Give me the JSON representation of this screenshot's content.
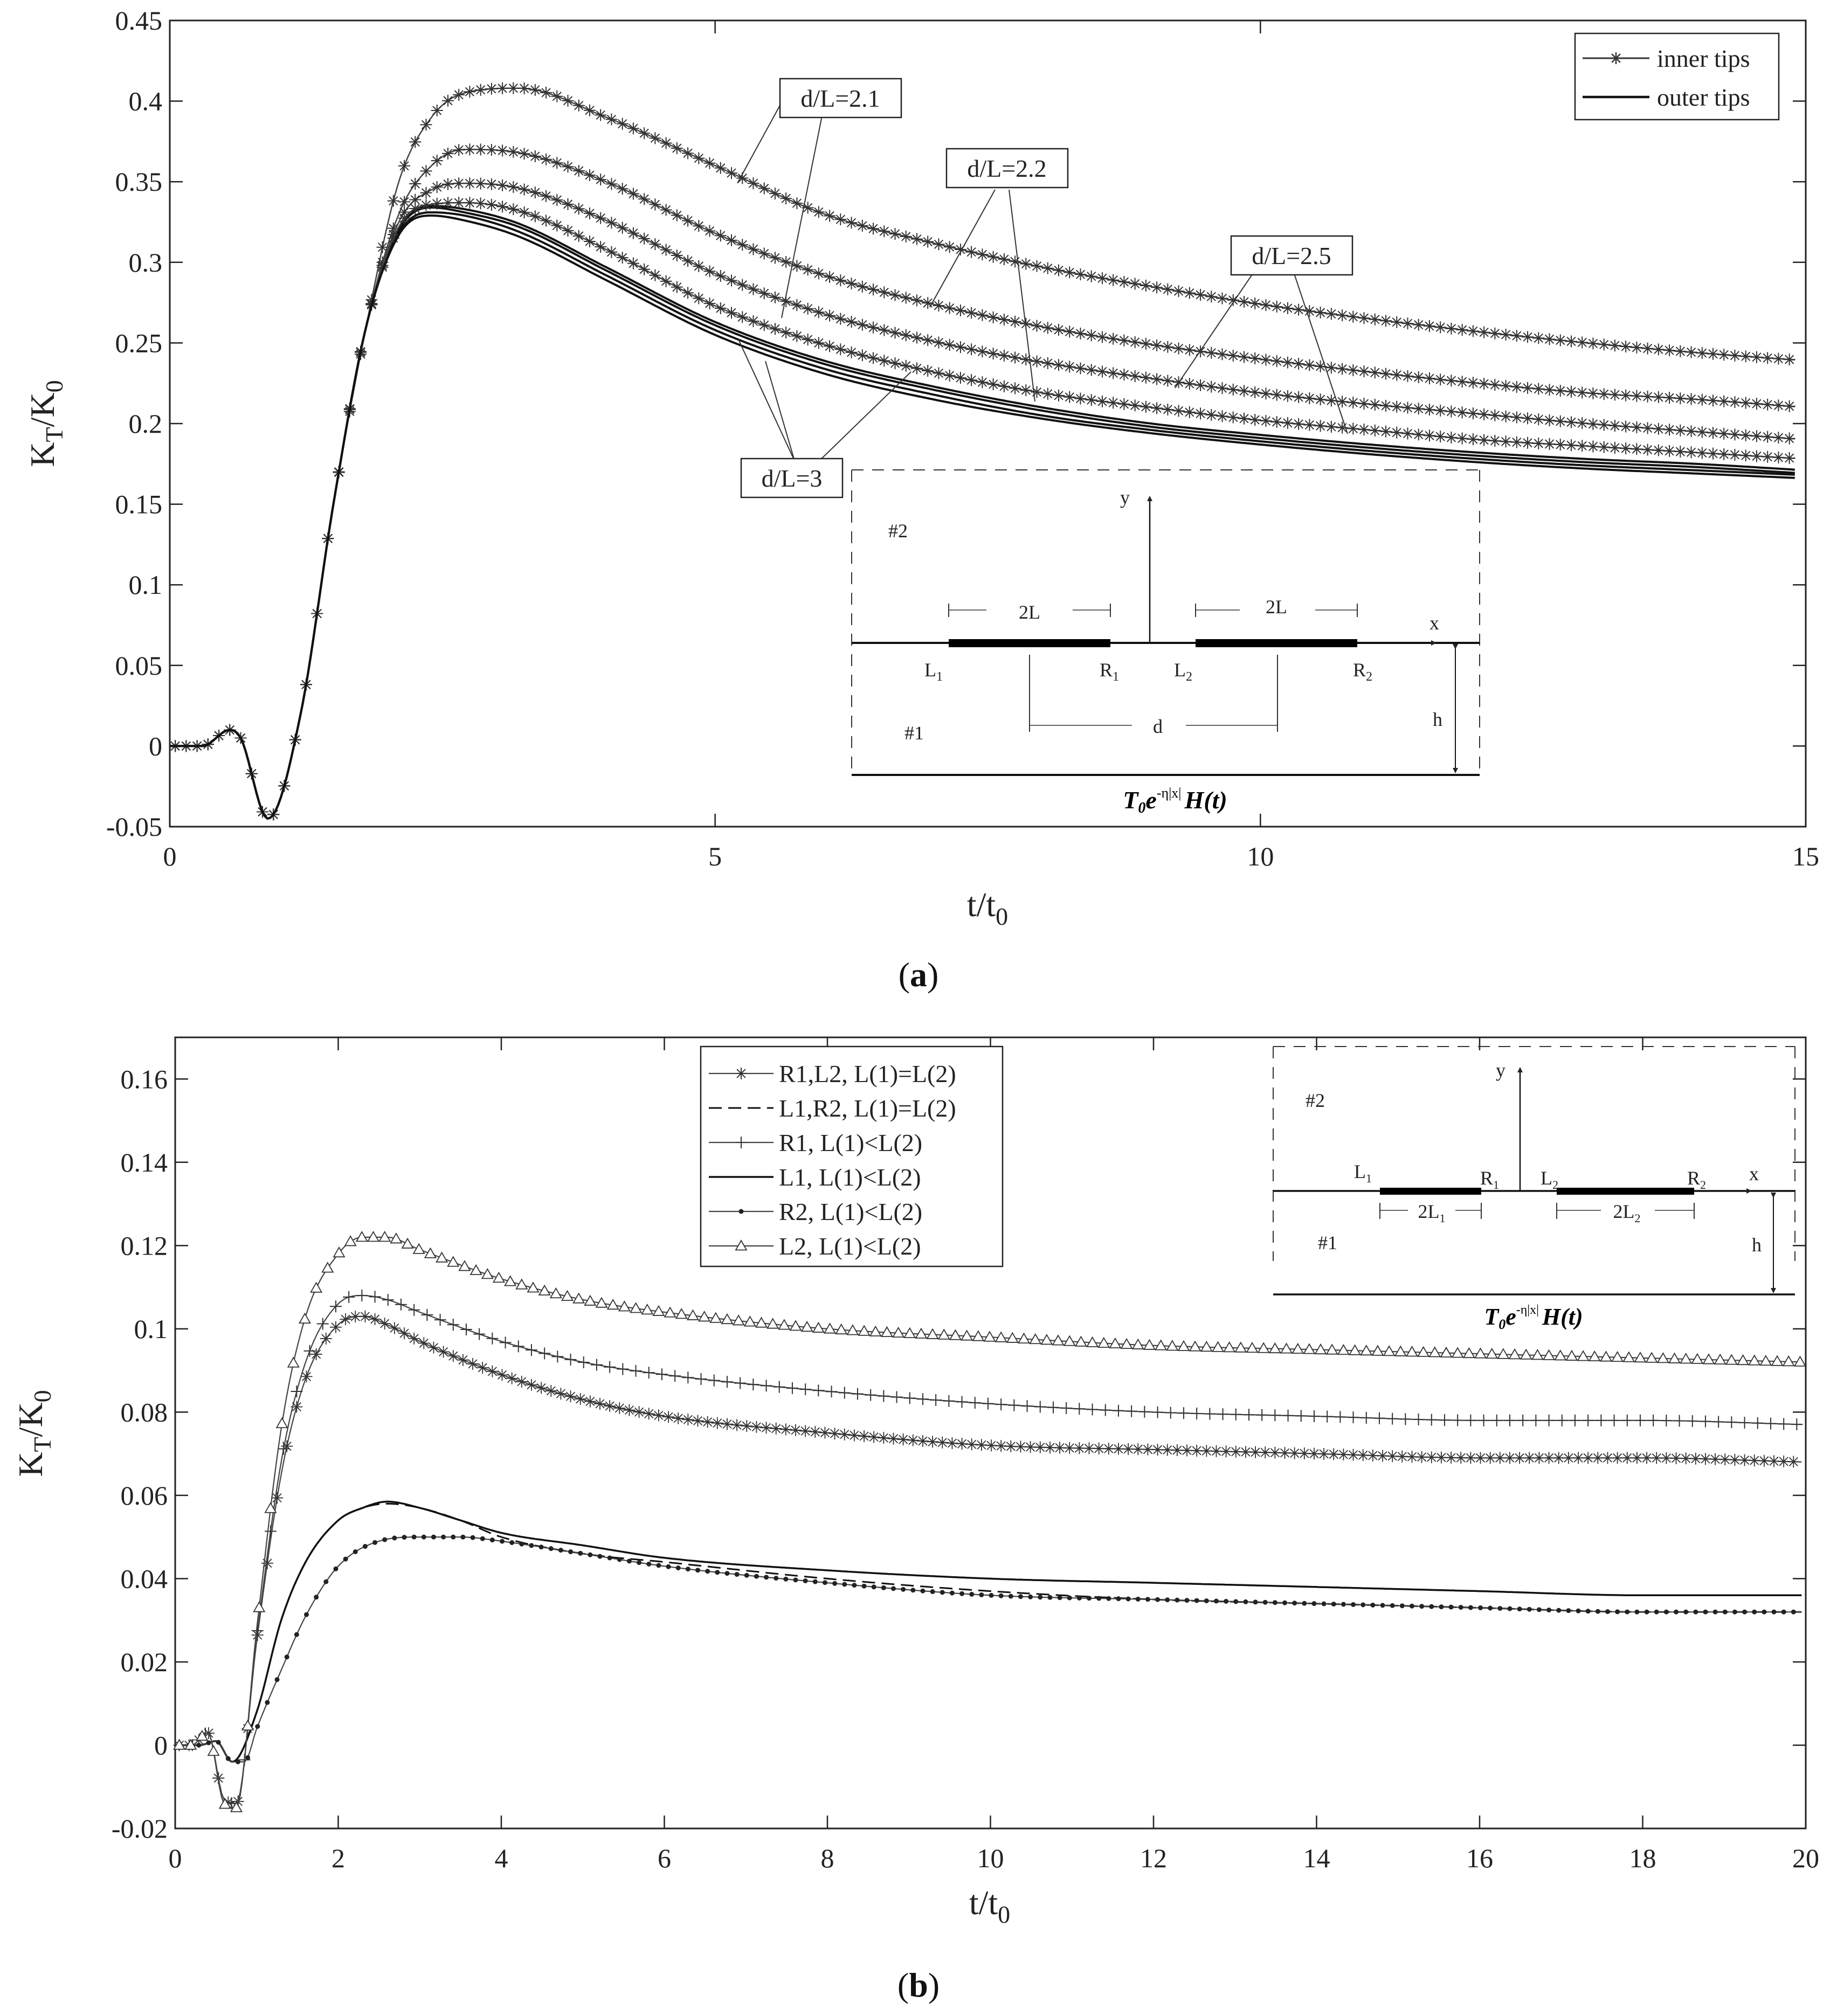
{
  "chart_data": [
    {
      "type": "line",
      "panel_label": "a",
      "xlabel": "t/t",
      "xlabel_sub": "0",
      "ylabel": "K",
      "ylabel_sub1": "T",
      "ylabel_mid": "/K",
      "ylabel_sub2": "0",
      "xlim": [
        0,
        15
      ],
      "ylim": [
        -0.05,
        0.45
      ],
      "xticks": [
        0,
        5,
        10,
        15
      ],
      "yticks": [
        -0.05,
        0,
        0.05,
        0.1,
        0.15,
        0.2,
        0.25,
        0.3,
        0.35,
        0.4,
        0.45
      ],
      "grid": false,
      "legend_position": "top-right",
      "legend": [
        {
          "label": "inner tips",
          "marker": "star",
          "line": "solid"
        },
        {
          "label": "outer tips",
          "marker": "none",
          "line": "solid"
        }
      ],
      "x": [
        0,
        0.3,
        0.55,
        0.65,
        0.9,
        1.2,
        1.5,
        1.8,
        2.1,
        2.4,
        2.7,
        3.2,
        4,
        5,
        6,
        7,
        8,
        9,
        10,
        11,
        12,
        13,
        14,
        15
      ],
      "series": [
        {
          "name": "inner tips, d/L=2.1",
          "style": "inner",
          "values": [
            0,
            0,
            0.01,
            0.005,
            -0.045,
            0.02,
            0.15,
            0.26,
            0.35,
            0.39,
            0.405,
            0.408,
            0.39,
            0.36,
            0.33,
            0.312,
            0.297,
            0.285,
            0.274,
            0.265,
            0.257,
            0.25,
            0.244,
            0.239
          ]
        },
        {
          "name": "outer tips, d/L=2.1",
          "style": "outer",
          "values": [
            0,
            0,
            0.01,
            0.005,
            -0.045,
            0.02,
            0.15,
            0.26,
            0.32,
            0.335,
            0.333,
            0.324,
            0.297,
            0.263,
            0.239,
            0.223,
            0.21,
            0.2,
            0.193,
            0.187,
            0.182,
            0.178,
            0.175,
            0.171
          ]
        },
        {
          "name": "inner tips, d/L=2.2",
          "style": "inner",
          "values": [
            0,
            0,
            0.01,
            0.005,
            -0.045,
            0.02,
            0.15,
            0.26,
            0.33,
            0.36,
            0.37,
            0.368,
            0.35,
            0.318,
            0.292,
            0.274,
            0.26,
            0.249,
            0.24,
            0.232,
            0.225,
            0.219,
            0.215,
            0.21
          ]
        },
        {
          "name": "outer tips, d/L=2.2",
          "style": "outer",
          "values": [
            0,
            0,
            0.01,
            0.005,
            -0.045,
            0.02,
            0.15,
            0.26,
            0.32,
            0.334,
            0.331,
            0.322,
            0.295,
            0.261,
            0.237,
            0.221,
            0.208,
            0.198,
            0.191,
            0.185,
            0.18,
            0.176,
            0.173,
            0.169
          ]
        },
        {
          "name": "inner tips, d/L=2.5",
          "style": "inner",
          "values": [
            0,
            0,
            0.01,
            0.005,
            -0.045,
            0.02,
            0.15,
            0.26,
            0.325,
            0.345,
            0.349,
            0.346,
            0.326,
            0.293,
            0.268,
            0.251,
            0.238,
            0.228,
            0.219,
            0.212,
            0.206,
            0.2,
            0.195,
            0.19
          ]
        },
        {
          "name": "outer tips, d/L=2.5",
          "style": "outer",
          "values": [
            0,
            0,
            0.01,
            0.005,
            -0.045,
            0.02,
            0.15,
            0.26,
            0.318,
            0.331,
            0.329,
            0.319,
            0.292,
            0.258,
            0.234,
            0.218,
            0.205,
            0.196,
            0.189,
            0.183,
            0.178,
            0.174,
            0.171,
            0.168
          ]
        },
        {
          "name": "inner tips, d/L=3",
          "style": "inner",
          "values": [
            0,
            0,
            0.01,
            0.005,
            -0.045,
            0.02,
            0.15,
            0.26,
            0.322,
            0.336,
            0.337,
            0.332,
            0.308,
            0.273,
            0.249,
            0.232,
            0.219,
            0.21,
            0.202,
            0.196,
            0.19,
            0.186,
            0.182,
            0.178
          ]
        },
        {
          "name": "outer tips, d/L=3",
          "style": "outer",
          "values": [
            0,
            0,
            0.01,
            0.005,
            -0.045,
            0.02,
            0.15,
            0.26,
            0.317,
            0.329,
            0.326,
            0.316,
            0.289,
            0.255,
            0.231,
            0.215,
            0.203,
            0.194,
            0.187,
            0.181,
            0.176,
            0.172,
            0.169,
            0.166
          ]
        }
      ],
      "annotations": [
        "d/L=2.1",
        "d/L=2.2",
        "d/L=2.5",
        "d/L=3"
      ],
      "inset": {
        "region_upper": "#2",
        "region_lower": "#1",
        "y_axis": "y",
        "x_axis": "x",
        "crack_left_len": "2L",
        "crack_right_len": "2L",
        "tip_L1": "L",
        "tip_L1_sub": "1",
        "tip_R1": "R",
        "tip_R1_sub": "1",
        "tip_L2": "L",
        "tip_L2_sub": "2",
        "tip_R2": "R",
        "tip_R2_sub": "2",
        "spacing": "d",
        "depth": "h",
        "load": {
          "T": "T",
          "T_sub": "0",
          "e": "e",
          "exp": "-η|x|",
          "H": "H(t)"
        }
      }
    },
    {
      "type": "line",
      "panel_label": "b",
      "xlabel": "t/t",
      "xlabel_sub": "0",
      "ylabel": "K",
      "ylabel_sub1": "T",
      "ylabel_mid": "/K",
      "ylabel_sub2": "0",
      "xlim": [
        0,
        20
      ],
      "ylim": [
        -0.02,
        0.17
      ],
      "xticks": [
        0,
        2,
        4,
        6,
        8,
        10,
        12,
        14,
        16,
        18,
        20
      ],
      "yticks": [
        -0.02,
        0,
        0.02,
        0.04,
        0.06,
        0.08,
        0.1,
        0.12,
        0.14,
        0.16
      ],
      "grid": false,
      "legend_position": "top-center",
      "legend": [
        {
          "label": "R1,L2, L(1)=L(2)",
          "marker": "star",
          "line": "solid"
        },
        {
          "label": "L1,R2, L(1)=L(2)",
          "marker": "none",
          "line": "dashed"
        },
        {
          "label": "R1, L(1)<L(2)",
          "marker": "plus",
          "line": "solid"
        },
        {
          "label": "L1, L(1)<L(2)",
          "marker": "none",
          "line": "solid"
        },
        {
          "label": "R2, L(1)<L(2)",
          "marker": "dot",
          "line": "solid"
        },
        {
          "label": "L2, L(1)<L(2)",
          "marker": "triangle",
          "line": "solid"
        }
      ],
      "series": [
        {
          "name": "R1,L2, L(1)=L(2)",
          "x": [
            0,
            0.2,
            0.4,
            0.6,
            0.75,
            1,
            1.3,
            1.6,
            2,
            2.3,
            2.6,
            3,
            4,
            5,
            6,
            8,
            10,
            12,
            14,
            16,
            18,
            20
          ],
          "values": [
            0,
            0,
            0.003,
            -0.013,
            -0.014,
            0.025,
            0.065,
            0.088,
            0.101,
            0.103,
            0.101,
            0.097,
            0.089,
            0.083,
            0.079,
            0.075,
            0.072,
            0.071,
            0.07,
            0.069,
            0.069,
            0.068
          ]
        },
        {
          "name": "L1,R2, L(1)=L(2)",
          "x": [
            0,
            0.3,
            0.5,
            0.7,
            1,
            1.3,
            1.6,
            2,
            2.3,
            2.6,
            3,
            3.5,
            4,
            5,
            6,
            8,
            10,
            12,
            14,
            16,
            18,
            20
          ],
          "values": [
            0,
            0,
            0.001,
            -0.004,
            0.008,
            0.03,
            0.044,
            0.054,
            0.057,
            0.058,
            0.057,
            0.054,
            0.05,
            0.046,
            0.044,
            0.04,
            0.037,
            0.035,
            0.034,
            0.033,
            0.032,
            0.032
          ]
        },
        {
          "name": "R1, L(1)<L(2)",
          "x": [
            0,
            0.2,
            0.4,
            0.6,
            0.75,
            1,
            1.3,
            1.6,
            2,
            2.3,
            2.6,
            3,
            4,
            5,
            6,
            8,
            10,
            12,
            14,
            16,
            18,
            20
          ],
          "values": [
            0,
            0,
            0.003,
            -0.013,
            -0.014,
            0.026,
            0.068,
            0.092,
            0.106,
            0.108,
            0.107,
            0.104,
            0.097,
            0.092,
            0.089,
            0.085,
            0.082,
            0.08,
            0.079,
            0.078,
            0.078,
            0.077
          ]
        },
        {
          "name": "L1, L(1)<L(2)",
          "x": [
            0,
            0.3,
            0.5,
            0.7,
            1,
            1.3,
            1.6,
            2,
            2.3,
            2.6,
            3,
            3.5,
            4,
            5,
            6,
            8,
            10,
            12,
            14,
            16,
            18,
            20
          ],
          "values": [
            0,
            0,
            0.001,
            -0.004,
            0.008,
            0.03,
            0.044,
            0.054,
            0.057,
            0.0585,
            0.057,
            0.054,
            0.051,
            0.048,
            0.045,
            0.042,
            0.04,
            0.039,
            0.038,
            0.037,
            0.036,
            0.036
          ]
        },
        {
          "name": "R2, L(1)<L(2)",
          "x": [
            0,
            0.3,
            0.5,
            0.7,
            0.85,
            1,
            1.3,
            1.6,
            2,
            2.5,
            3,
            3.5,
            4,
            5,
            6,
            8,
            10,
            12,
            14,
            16,
            18,
            20
          ],
          "values": [
            0,
            0,
            0.001,
            -0.004,
            -0.004,
            0.004,
            0.018,
            0.031,
            0.043,
            0.049,
            0.05,
            0.05,
            0.049,
            0.046,
            0.043,
            0.039,
            0.036,
            0.035,
            0.034,
            0.033,
            0.032,
            0.032
          ]
        },
        {
          "name": "L2, L(1)<L(2)",
          "x": [
            0,
            0.2,
            0.4,
            0.6,
            0.75,
            1,
            1.3,
            1.6,
            2,
            2.3,
            2.6,
            3,
            4,
            5,
            6,
            8,
            10,
            12,
            14,
            16,
            18,
            20
          ],
          "values": [
            0,
            0,
            0.003,
            -0.014,
            -0.015,
            0.028,
            0.076,
            0.103,
            0.118,
            0.122,
            0.122,
            0.119,
            0.112,
            0.107,
            0.104,
            0.1,
            0.098,
            0.096,
            0.095,
            0.094,
            0.093,
            0.092
          ]
        }
      ],
      "inset": {
        "region_upper": "#2",
        "region_lower": "#1",
        "y_axis": "y",
        "x_axis": "x",
        "crack_left_len": "2L",
        "crack_left_len_sub": "1",
        "crack_right_len": "2L",
        "crack_right_len_sub": "2",
        "tip_L1": "L",
        "tip_L1_sub": "1",
        "tip_R1": "R",
        "tip_R1_sub": "1",
        "tip_L2": "L",
        "tip_L2_sub": "2",
        "tip_R2": "R",
        "tip_R2_sub": "2",
        "depth": "h",
        "load": {
          "T": "T",
          "T_sub": "0",
          "e": "e",
          "exp": "-η|x|",
          "H": "H(t)"
        }
      }
    }
  ]
}
